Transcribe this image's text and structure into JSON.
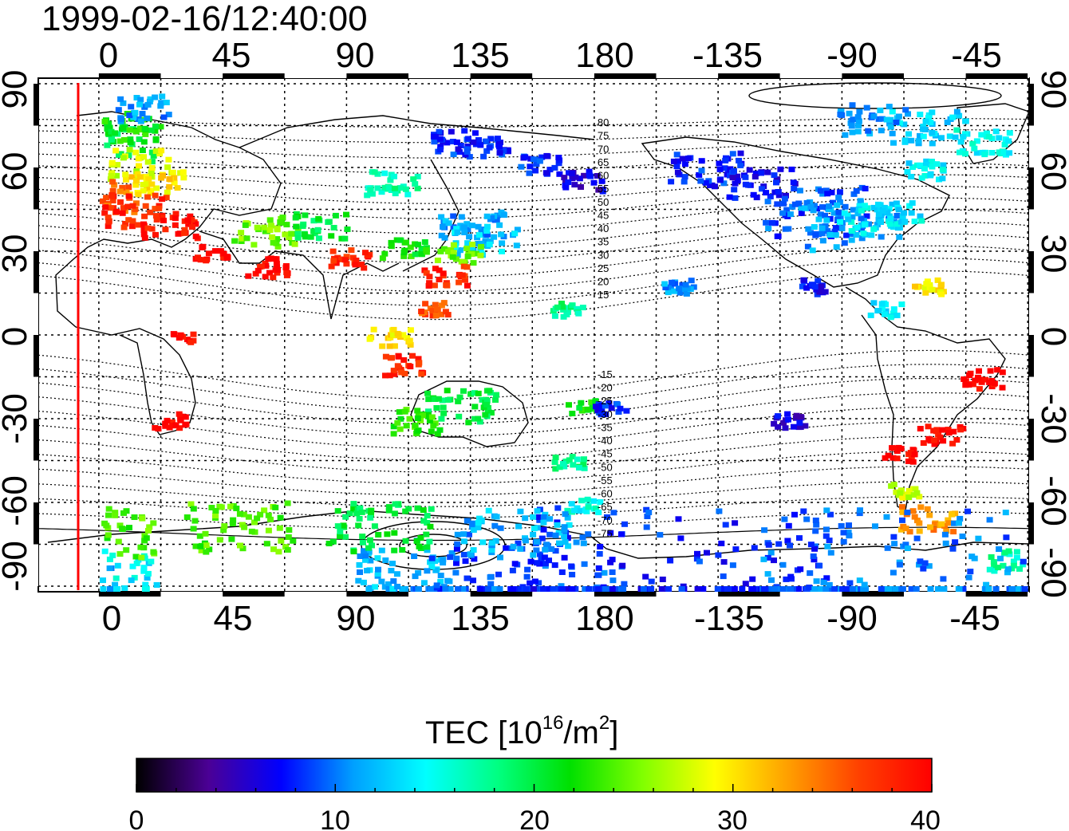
{
  "timestamp": "1999-02-16/12:40:00",
  "lon_ticks": [
    "0",
    "45",
    "90",
    "135",
    "180",
    "-135",
    "-90",
    "-45"
  ],
  "lat_ticks": [
    "90",
    "60",
    "30",
    "0",
    "-30",
    "-60",
    "-90"
  ],
  "contour_labels": [
    "80",
    "75",
    "70",
    "65",
    "60",
    "55",
    "50",
    "45",
    "40",
    "35",
    "30",
    "25",
    "20",
    "15",
    "-15",
    "-20",
    "-25",
    "-30",
    "-35",
    "-40",
    "-45",
    "-50",
    "-55",
    "-60",
    "-65",
    "-70",
    "-75"
  ],
  "colorbar": {
    "title_main": "TEC  [10",
    "title_sup1": "16",
    "title_mid": "/m",
    "title_sup2": "2",
    "title_end": "]",
    "ticks": [
      "0",
      "10",
      "20",
      "30",
      "40"
    ],
    "range": [
      0,
      40
    ],
    "colors": [
      "#000000",
      "#4b0096",
      "#0000ff",
      "#00a0ff",
      "#00ffff",
      "#00ff80",
      "#00e000",
      "#80ff00",
      "#ffff00",
      "#ffa000",
      "#ff4000",
      "#ff0000"
    ]
  },
  "map": {
    "lon_range": [
      -22,
      338
    ],
    "lat_range": [
      -92,
      92
    ],
    "marker_line_lon": -10,
    "marker_line_color": "#ff0000"
  }
}
